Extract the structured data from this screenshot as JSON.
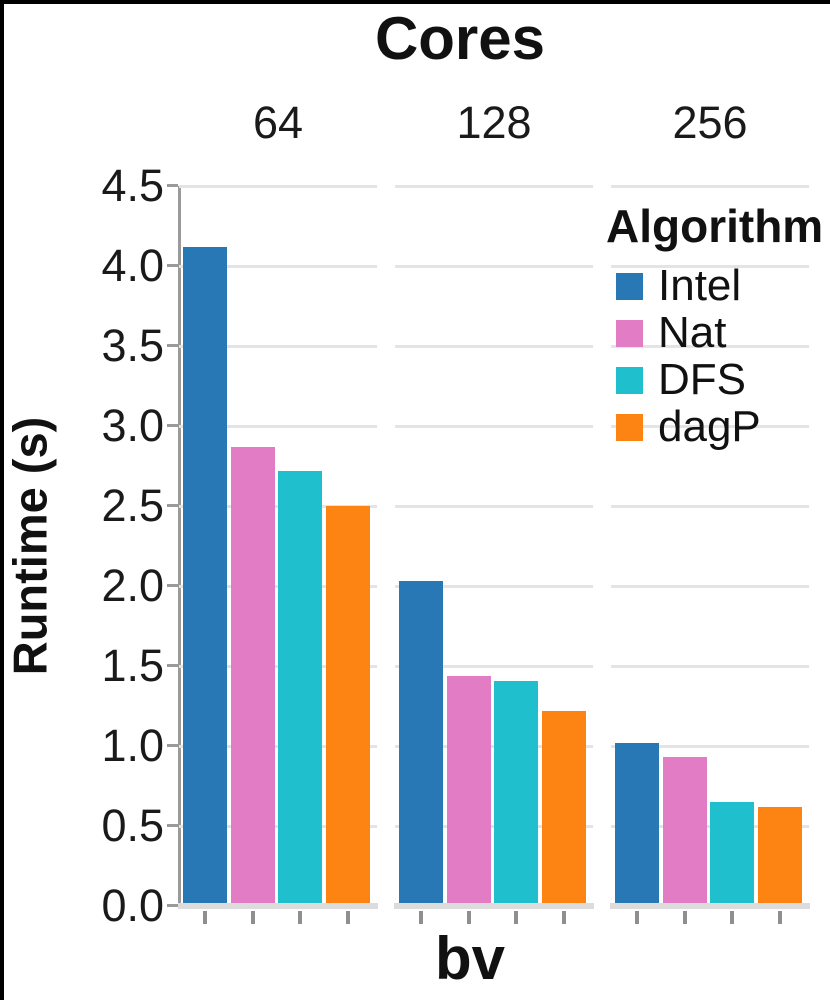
{
  "title": "Cores",
  "y_axis": {
    "label": "Runtime (s)",
    "ticks": [
      "0.0",
      "0.5",
      "1.0",
      "1.5",
      "2.0",
      "2.5",
      "3.0",
      "3.5",
      "4.0",
      "4.5"
    ]
  },
  "x_axis": {
    "label": "bv"
  },
  "legend": {
    "title": "Algorithm",
    "entries": [
      "Intel",
      "Nat",
      "DFS",
      "dagP"
    ]
  },
  "colors": {
    "intel": "#2878b5",
    "nat": "#e17cc5",
    "dfs": "#20bfce",
    "dagp": "#fd8312",
    "gridline": "#e4e4e4",
    "axis": "#9a9a9a"
  },
  "chart_data": {
    "type": "bar",
    "title": "Cores",
    "facet_variable": "Cores",
    "facets": [
      "64",
      "128",
      "256"
    ],
    "xlabel": "bv",
    "ylabel": "Runtime (s)",
    "ylim": [
      0,
      4.5
    ],
    "ytick_step": 0.5,
    "grid": true,
    "legend_title": "Algorithm",
    "legend_position": "inside-top-right",
    "series": [
      {
        "name": "Intel",
        "color": "#2878b5",
        "values": [
          4.1,
          2.01,
          1.0
        ]
      },
      {
        "name": "Nat",
        "color": "#e17cc5",
        "values": [
          2.85,
          1.42,
          0.91
        ]
      },
      {
        "name": "DFS",
        "color": "#20bfce",
        "values": [
          2.7,
          1.39,
          0.63
        ]
      },
      {
        "name": "dagP",
        "color": "#fd8312",
        "values": [
          2.48,
          1.2,
          0.6
        ]
      }
    ]
  }
}
